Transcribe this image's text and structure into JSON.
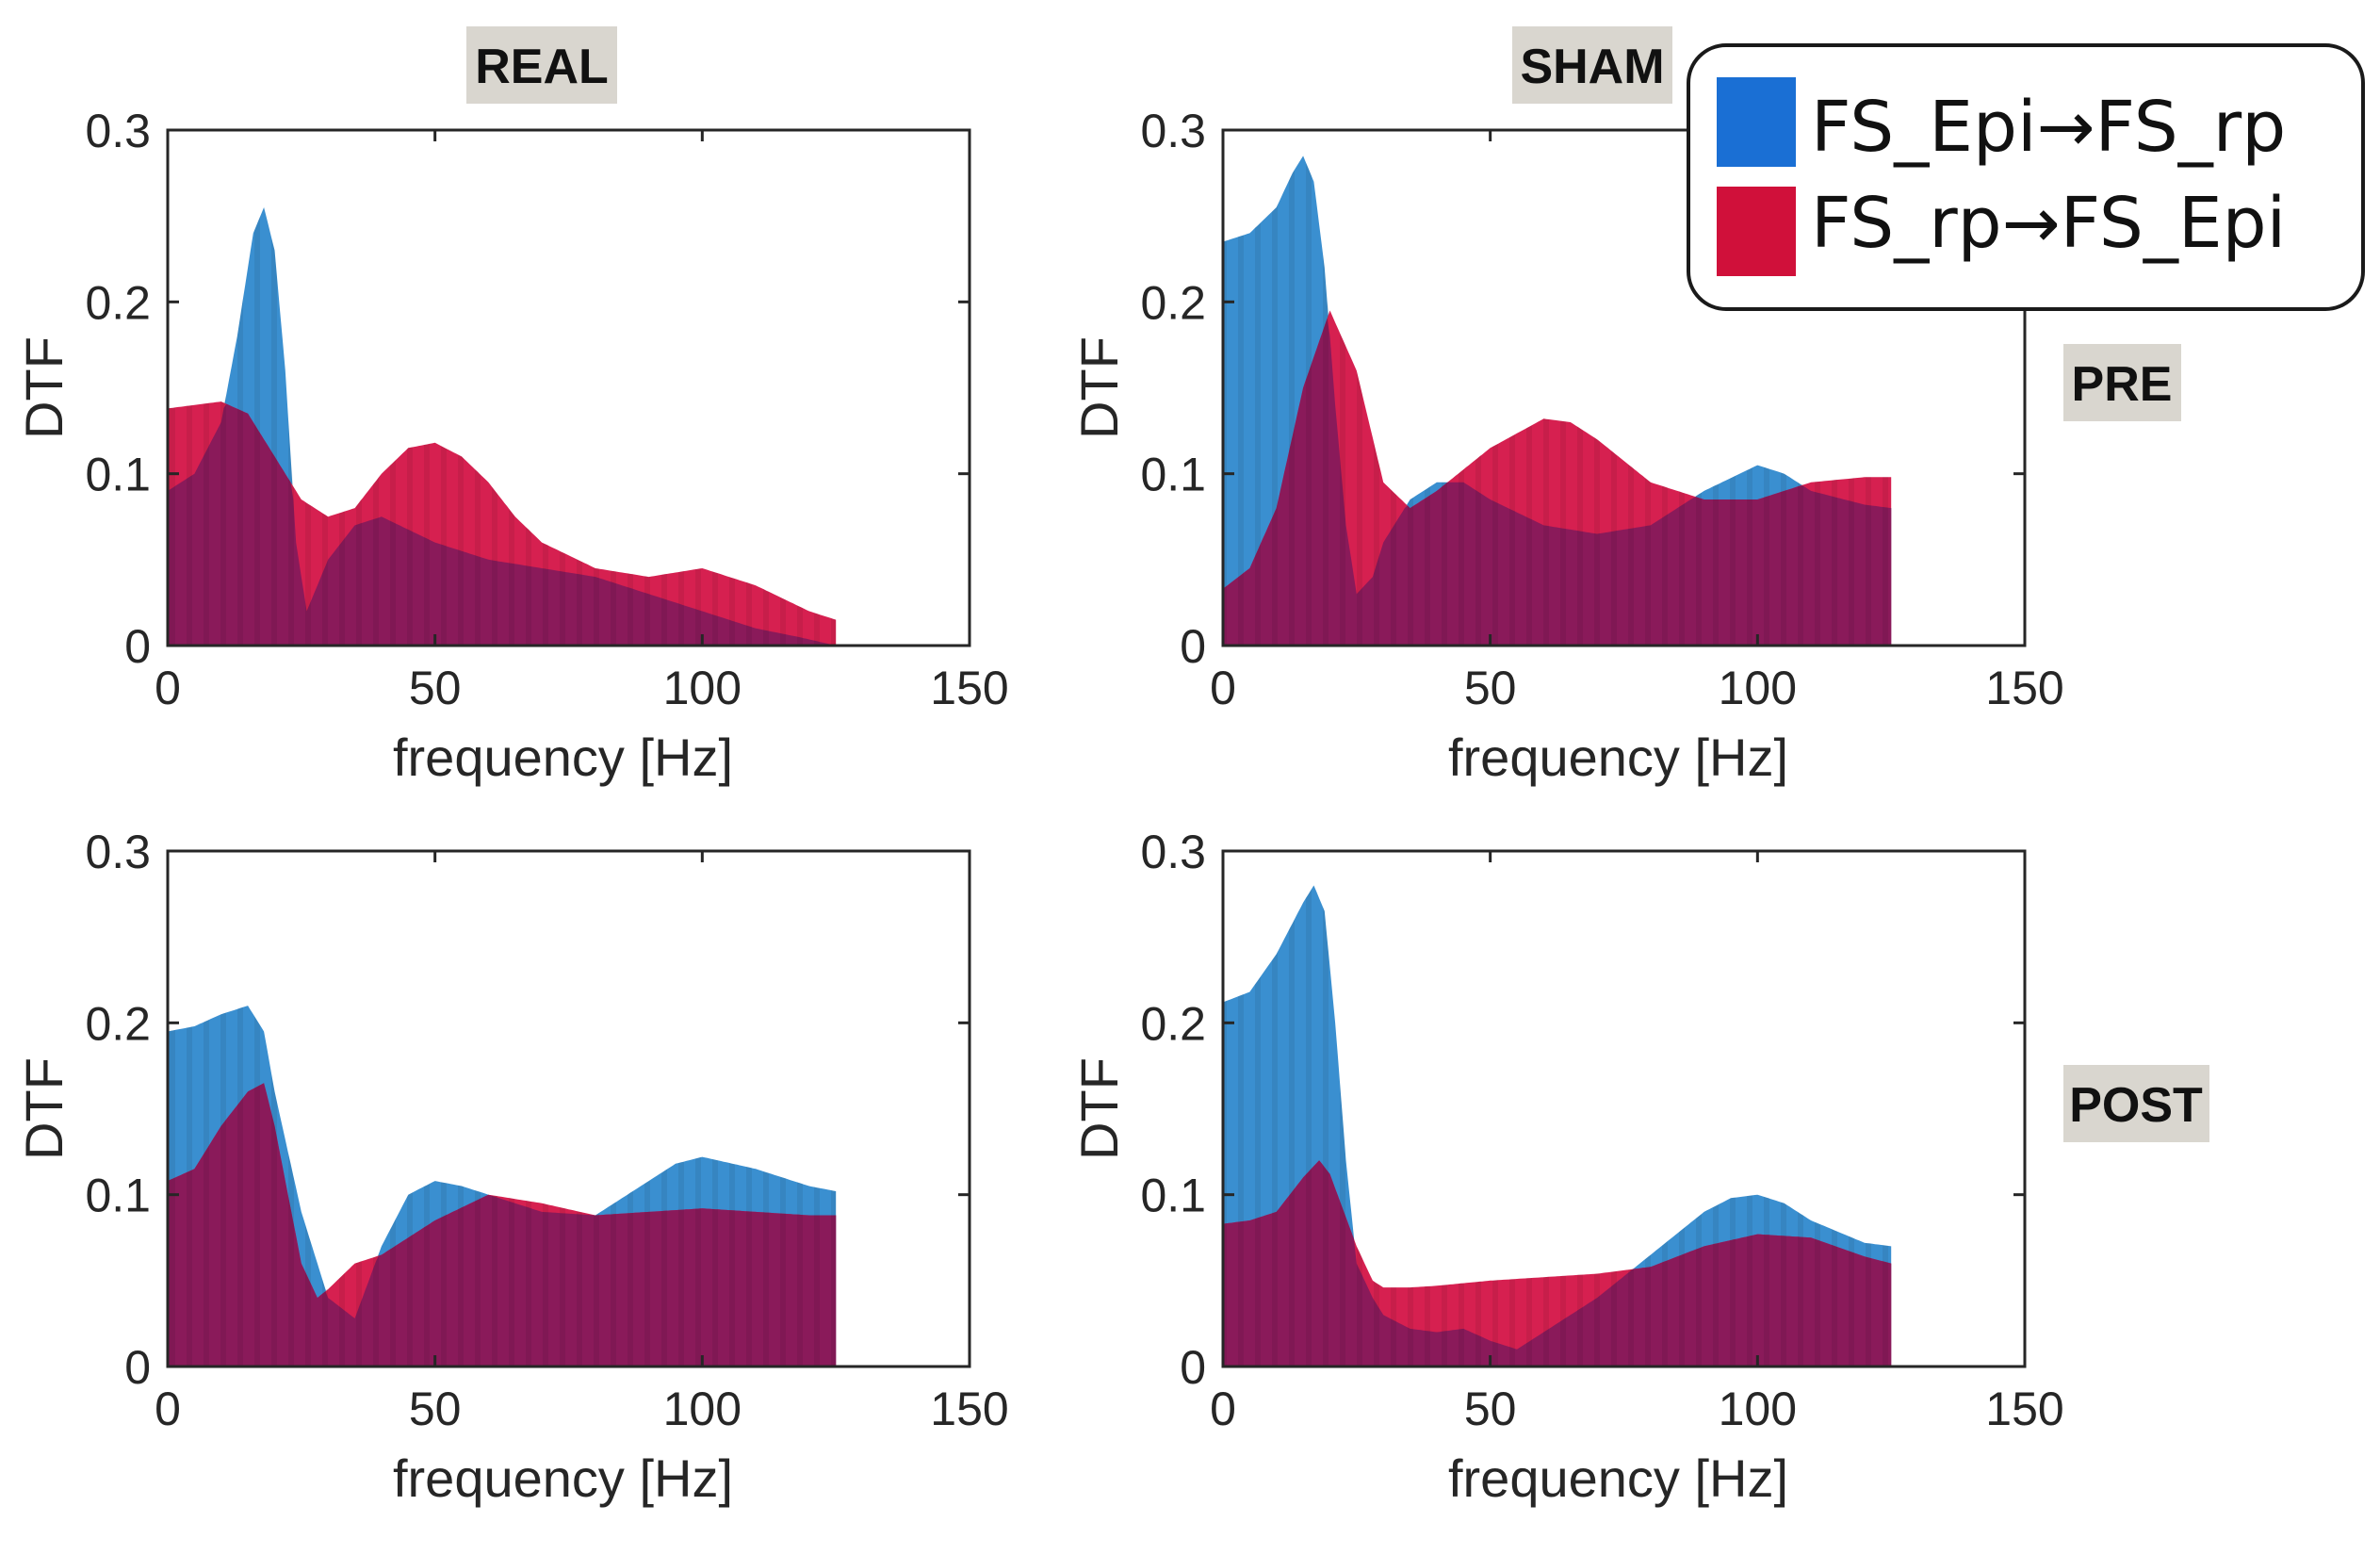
{
  "figure": {
    "column_titles": [
      "REAL",
      "SHAM"
    ],
    "row_titles": [
      "PRE",
      "POST"
    ]
  },
  "legend": {
    "items": [
      {
        "label": "FS_Epi→FS_rp",
        "color": "#1a6fd4"
      },
      {
        "label": "FS_rp→FS_Epi",
        "color": "#d0103a"
      }
    ]
  },
  "colors": {
    "blue_fill": "#3a8fd0",
    "red_fill": "#d62050",
    "overlap": "#8a1a5a",
    "axis": "#262626",
    "tag_bg": "#d9d6cf"
  },
  "chart_data": [
    {
      "type": "area",
      "panel": "REAL-PRE",
      "row": "PRE",
      "column": "REAL",
      "xlabel": "frequency [Hz]",
      "ylabel": "DTF",
      "xlim": [
        0,
        150
      ],
      "ylim": [
        0,
        0.3
      ],
      "xticks": [
        0,
        50,
        100,
        150
      ],
      "yticks": [
        0,
        0.1,
        0.2,
        0.3
      ],
      "series": [
        {
          "name": "FS_Epi→FS_rp",
          "x": [
            0,
            5,
            10,
            13,
            16,
            18,
            20,
            22,
            24,
            26,
            30,
            35,
            40,
            50,
            60,
            70,
            80,
            90,
            100,
            110,
            118,
            125
          ],
          "values": [
            0.09,
            0.1,
            0.13,
            0.18,
            0.24,
            0.255,
            0.23,
            0.16,
            0.06,
            0.02,
            0.05,
            0.07,
            0.075,
            0.06,
            0.05,
            0.045,
            0.04,
            0.03,
            0.02,
            0.01,
            0.005,
            0.0
          ]
        },
        {
          "name": "FS_rp→FS_Epi",
          "x": [
            0,
            5,
            10,
            15,
            20,
            25,
            30,
            35,
            40,
            45,
            50,
            55,
            60,
            65,
            70,
            80,
            90,
            100,
            110,
            120,
            125
          ],
          "values": [
            0.138,
            0.14,
            0.142,
            0.135,
            0.11,
            0.085,
            0.075,
            0.08,
            0.1,
            0.115,
            0.118,
            0.11,
            0.095,
            0.075,
            0.06,
            0.045,
            0.04,
            0.045,
            0.035,
            0.02,
            0.015
          ]
        }
      ]
    },
    {
      "type": "area",
      "panel": "SHAM-PRE",
      "row": "PRE",
      "column": "SHAM",
      "xlabel": "frequency [Hz]",
      "ylabel": "DTF",
      "xlim": [
        0,
        150
      ],
      "ylim": [
        0,
        0.3
      ],
      "xticks": [
        0,
        50,
        100,
        150
      ],
      "yticks": [
        0,
        0.1,
        0.2,
        0.3
      ],
      "series": [
        {
          "name": "FS_Epi→FS_rp",
          "x": [
            0,
            5,
            10,
            13,
            15,
            17,
            19,
            21,
            23,
            25,
            28,
            30,
            35,
            40,
            45,
            50,
            60,
            70,
            80,
            90,
            100,
            105,
            110,
            120,
            125
          ],
          "values": [
            0.235,
            0.24,
            0.255,
            0.275,
            0.285,
            0.27,
            0.22,
            0.14,
            0.07,
            0.03,
            0.04,
            0.06,
            0.085,
            0.095,
            0.095,
            0.085,
            0.07,
            0.065,
            0.07,
            0.09,
            0.105,
            0.1,
            0.09,
            0.082,
            0.08
          ]
        },
        {
          "name": "FS_rp→FS_Epi",
          "x": [
            0,
            5,
            10,
            15,
            20,
            25,
            30,
            35,
            40,
            50,
            60,
            65,
            70,
            80,
            90,
            100,
            110,
            120,
            125
          ],
          "values": [
            0.033,
            0.045,
            0.08,
            0.15,
            0.195,
            0.16,
            0.095,
            0.08,
            0.09,
            0.115,
            0.132,
            0.13,
            0.12,
            0.095,
            0.085,
            0.085,
            0.095,
            0.098,
            0.098
          ]
        }
      ]
    },
    {
      "type": "area",
      "panel": "REAL-POST",
      "row": "POST",
      "column": "REAL",
      "xlabel": "frequency [Hz]",
      "ylabel": "DTF",
      "xlim": [
        0,
        150
      ],
      "ylim": [
        0,
        0.3
      ],
      "xticks": [
        0,
        50,
        100,
        150
      ],
      "yticks": [
        0,
        0.1,
        0.2,
        0.3
      ],
      "series": [
        {
          "name": "FS_Epi→FS_rp",
          "x": [
            0,
            5,
            10,
            15,
            18,
            20,
            25,
            30,
            35,
            40,
            45,
            50,
            55,
            60,
            70,
            80,
            90,
            95,
            100,
            110,
            120,
            125
          ],
          "values": [
            0.195,
            0.198,
            0.205,
            0.21,
            0.195,
            0.16,
            0.09,
            0.04,
            0.028,
            0.07,
            0.1,
            0.108,
            0.105,
            0.1,
            0.09,
            0.088,
            0.108,
            0.118,
            0.122,
            0.115,
            0.105,
            0.102
          ]
        },
        {
          "name": "FS_rp→FS_Epi",
          "x": [
            0,
            5,
            10,
            15,
            18,
            20,
            25,
            28,
            30,
            35,
            40,
            50,
            60,
            70,
            80,
            90,
            100,
            110,
            120,
            125
          ],
          "values": [
            0.108,
            0.115,
            0.14,
            0.16,
            0.165,
            0.14,
            0.06,
            0.04,
            0.045,
            0.06,
            0.065,
            0.085,
            0.1,
            0.095,
            0.088,
            0.09,
            0.092,
            0.09,
            0.088,
            0.088
          ]
        }
      ]
    },
    {
      "type": "area",
      "panel": "SHAM-POST",
      "row": "POST",
      "column": "SHAM",
      "xlabel": "frequency [Hz]",
      "ylabel": "DTF",
      "xlim": [
        0,
        150
      ],
      "ylim": [
        0,
        0.3
      ],
      "xticks": [
        0,
        50,
        100,
        150
      ],
      "yticks": [
        0,
        0.1,
        0.2,
        0.3
      ],
      "series": [
        {
          "name": "FS_Epi→FS_rp",
          "x": [
            0,
            5,
            10,
            15,
            17,
            19,
            21,
            23,
            25,
            28,
            30,
            35,
            40,
            45,
            50,
            55,
            60,
            70,
            80,
            90,
            95,
            100,
            105,
            110,
            120,
            125
          ],
          "values": [
            0.212,
            0.218,
            0.24,
            0.27,
            0.28,
            0.265,
            0.2,
            0.12,
            0.06,
            0.04,
            0.03,
            0.022,
            0.02,
            0.022,
            0.015,
            0.01,
            0.02,
            0.04,
            0.065,
            0.09,
            0.098,
            0.1,
            0.095,
            0.085,
            0.072,
            0.07
          ]
        },
        {
          "name": "FS_rp→FS_Epi",
          "x": [
            0,
            5,
            10,
            15,
            18,
            20,
            25,
            28,
            30,
            35,
            40,
            50,
            60,
            70,
            80,
            90,
            100,
            110,
            120,
            125
          ],
          "values": [
            0.083,
            0.085,
            0.09,
            0.11,
            0.12,
            0.112,
            0.07,
            0.05,
            0.046,
            0.046,
            0.047,
            0.05,
            0.052,
            0.054,
            0.058,
            0.07,
            0.077,
            0.075,
            0.064,
            0.06
          ]
        }
      ]
    }
  ]
}
